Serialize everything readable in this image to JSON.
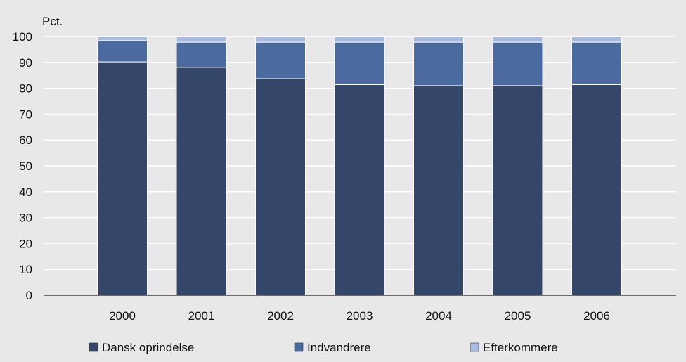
{
  "chart_data": {
    "type": "bar",
    "stacked": true,
    "unit_label": "Pct.",
    "categories": [
      "2000",
      "2001",
      "2002",
      "2003",
      "2004",
      "2005",
      "2006"
    ],
    "series": [
      {
        "name": "Dansk oprindelse",
        "color": "#34476b",
        "values": [
          90.2,
          88.1,
          83.7,
          81.4,
          81.0,
          81.0,
          81.4
        ]
      },
      {
        "name": "Indvandrere",
        "color": "#4b6aa0",
        "values": [
          8.2,
          9.7,
          14.1,
          16.4,
          16.8,
          16.8,
          16.4
        ]
      },
      {
        "name": "Efterkommere",
        "color": "#a9bbe0",
        "values": [
          1.6,
          2.2,
          2.2,
          2.2,
          2.2,
          2.2,
          2.2
        ]
      }
    ],
    "ylim": [
      0,
      100
    ],
    "yticks": [
      0,
      10,
      20,
      30,
      40,
      50,
      60,
      70,
      80,
      90,
      100
    ],
    "grid": true,
    "legend_position": "bottom"
  }
}
